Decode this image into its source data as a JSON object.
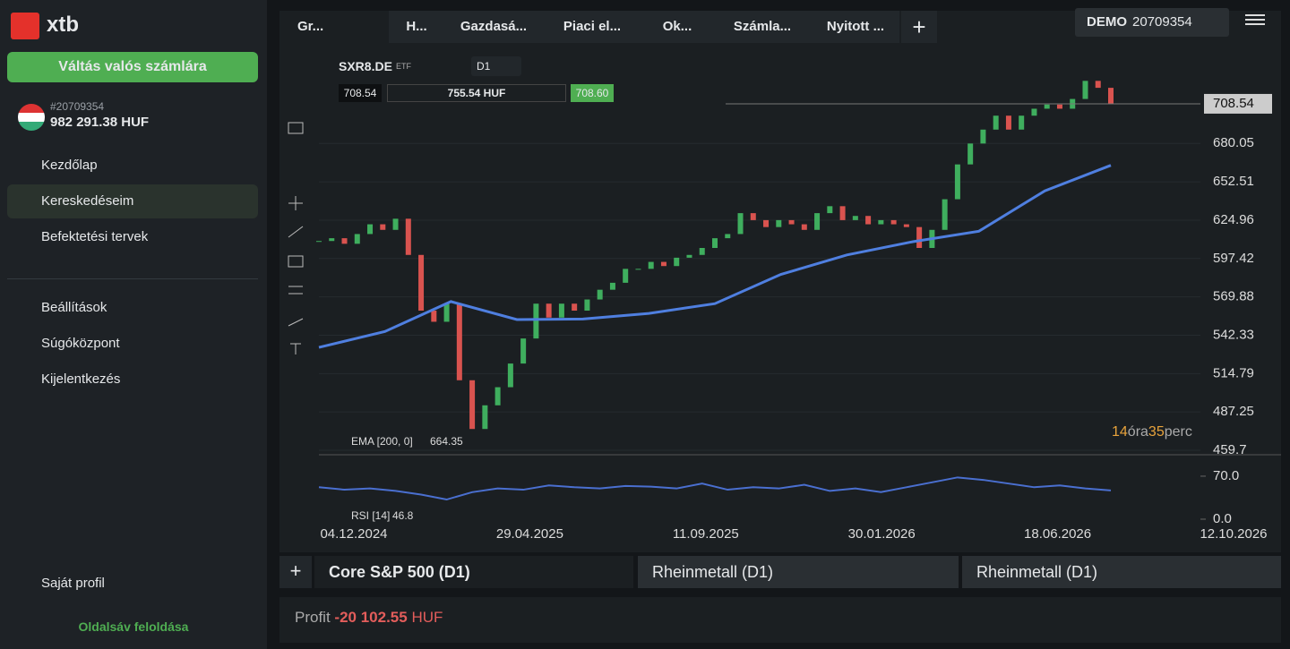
{
  "sidebar": {
    "logo": "xtb",
    "switch_button": "Váltás valós számlára",
    "account_id": "#20709354",
    "balance": "982 291.38 HUF",
    "nav": [
      "Kezdőlap",
      "Kereskedéseim",
      "Befektetési tervek"
    ],
    "nav2": [
      "Beállítások",
      "Súgóközpont",
      "Kijelentkezés"
    ],
    "profile": "Saját profil",
    "unlock": "Oldalsáv feloldása"
  },
  "tabs": [
    "Gr...",
    "H...",
    "Gazdasá...",
    "Piaci el...",
    "Ok...",
    "Számla...",
    "Nyitott ..."
  ],
  "account": {
    "mode": "DEMO",
    "number": "20709354"
  },
  "chart_data": {
    "type": "candlestick",
    "symbol": "SXR8.DE",
    "symbol_tag": "ETF",
    "interval": "D1",
    "bid": "708.54",
    "amount": "755.54 HUF",
    "ask": "708.60",
    "categories": [
      "04.12.2024",
      "29.04.2025",
      "11.09.2025",
      "30.01.2026",
      "18.06.2026",
      "12.10.2026"
    ],
    "ylim": [
      456.5,
      744.5
    ],
    "yticks": [
      680.05,
      652.51,
      624.96,
      597.42,
      569.88,
      542.33,
      514.79,
      487.25,
      459.7
    ],
    "up_color": "#3fae5e",
    "down_color": "#d9534f",
    "closes": [
      610,
      612,
      608,
      615,
      622,
      618,
      626,
      600,
      560,
      552,
      565,
      510,
      475,
      492,
      505,
      522,
      540,
      565,
      555,
      565,
      560,
      568,
      575,
      580,
      590,
      590,
      595,
      592,
      598,
      600,
      605,
      612,
      615,
      630,
      625,
      620,
      625,
      622,
      618,
      630,
      635,
      625,
      628,
      622,
      625,
      622,
      620,
      605,
      618,
      640,
      665,
      680,
      690,
      700,
      690,
      700,
      705,
      708,
      705,
      712,
      725,
      720,
      708.54
    ],
    "ema": {
      "name": "EMA [200, 0]",
      "color": "#4f7fe0",
      "values": [
        533.6,
        545,
        566.5,
        553.6,
        554,
        558,
        565,
        586,
        600,
        609.5,
        617,
        646,
        664.35
      ]
    },
    "rsi": {
      "name": "RSI [14]",
      "color": "#4a6fd0",
      "ylim": [
        -14.6,
        102
      ],
      "yticks": [
        {
          "value": 70,
          "label": "70.0"
        },
        {
          "value": 0,
          "label": "0.0"
        }
      ],
      "values": [
        52,
        48,
        50,
        46,
        40,
        32,
        44,
        50,
        48,
        55,
        52,
        50,
        54,
        53,
        50,
        58,
        48,
        52,
        50,
        56,
        46,
        50,
        44,
        52,
        60,
        68,
        64,
        58,
        52,
        55,
        50,
        46.8
      ]
    },
    "countdown": [
      "14",
      "óra",
      "35",
      "perc"
    ]
  },
  "bottom_tabs": [
    "Core S&P 500 (D1)",
    "Rheinmetall (D1)",
    "Rheinmetall (D1)"
  ],
  "profit": {
    "label": "Profit",
    "value": "-20 102.55",
    "currency": "HUF"
  }
}
